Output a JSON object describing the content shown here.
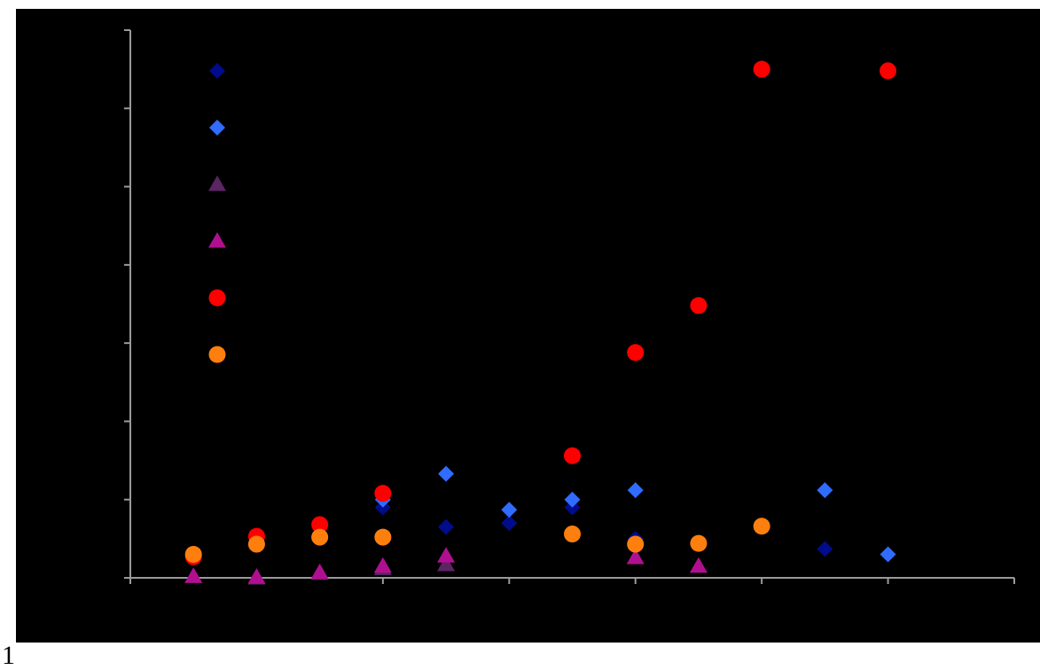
{
  "page": {
    "number_text": "1"
  },
  "chart_data": {
    "type": "scatter",
    "title": "",
    "xlabel": "",
    "ylabel": "",
    "xlim": [
      0,
      14
    ],
    "ylim": [
      0,
      7
    ],
    "x_major_ticks": [
      0,
      2,
      4,
      6,
      8,
      10,
      12,
      14
    ],
    "y_major_ticks": [
      0,
      1,
      2,
      3,
      4,
      5,
      6,
      7
    ],
    "tick_labels_visible": false,
    "grid": false,
    "background_color": "#000000",
    "axis_color": "#9a9a9a",
    "legend": {
      "visible": true,
      "position": "top-left",
      "labels_visible": false
    },
    "series": [
      {
        "marker": "diamond",
        "color": "#000c8a",
        "points": [
          {
            "x": 4,
            "y": 0.9
          },
          {
            "x": 5,
            "y": 0.65
          },
          {
            "x": 6,
            "y": 0.7
          },
          {
            "x": 7,
            "y": 0.9
          },
          {
            "x": 8,
            "y": 0.5
          },
          {
            "x": 11,
            "y": 0.37
          }
        ]
      },
      {
        "marker": "diamond",
        "color": "#2f6cff",
        "points": [
          {
            "x": 4,
            "y": 1.0
          },
          {
            "x": 5,
            "y": 1.33
          },
          {
            "x": 6,
            "y": 0.87
          },
          {
            "x": 7,
            "y": 1.0
          },
          {
            "x": 8,
            "y": 1.12
          },
          {
            "x": 11,
            "y": 1.12
          },
          {
            "x": 12,
            "y": 0.3
          }
        ]
      },
      {
        "marker": "triangle",
        "color": "#5b2563",
        "points": [
          {
            "x": 1,
            "y": 0.02
          },
          {
            "x": 2,
            "y": 0.0
          },
          {
            "x": 3,
            "y": 0.06
          },
          {
            "x": 4,
            "y": 0.12
          },
          {
            "x": 5,
            "y": 0.17
          }
        ]
      },
      {
        "marker": "triangle",
        "color": "#b0108f",
        "points": [
          {
            "x": 1,
            "y": 0.02
          },
          {
            "x": 2,
            "y": 0.01
          },
          {
            "x": 3,
            "y": 0.07
          },
          {
            "x": 4,
            "y": 0.15
          },
          {
            "x": 5,
            "y": 0.28
          },
          {
            "x": 8,
            "y": 0.26
          },
          {
            "x": 9,
            "y": 0.15
          }
        ]
      },
      {
        "marker": "circle",
        "color": "#ff0000",
        "points": [
          {
            "x": 1,
            "y": 0.27
          },
          {
            "x": 2,
            "y": 0.53
          },
          {
            "x": 3,
            "y": 0.68
          },
          {
            "x": 4,
            "y": 1.08
          },
          {
            "x": 7,
            "y": 1.56
          },
          {
            "x": 8,
            "y": 2.88
          },
          {
            "x": 9,
            "y": 3.48
          },
          {
            "x": 10,
            "y": 6.5
          },
          {
            "x": 12,
            "y": 6.48
          }
        ]
      },
      {
        "marker": "circle",
        "color": "#ff7f0e",
        "points": [
          {
            "x": 1,
            "y": 0.3
          },
          {
            "x": 2,
            "y": 0.43
          },
          {
            "x": 3,
            "y": 0.52
          },
          {
            "x": 4,
            "y": 0.52
          },
          {
            "x": 7,
            "y": 0.56
          },
          {
            "x": 8,
            "y": 0.43
          },
          {
            "x": 9,
            "y": 0.44
          },
          {
            "x": 10,
            "y": 0.66
          }
        ]
      }
    ]
  }
}
